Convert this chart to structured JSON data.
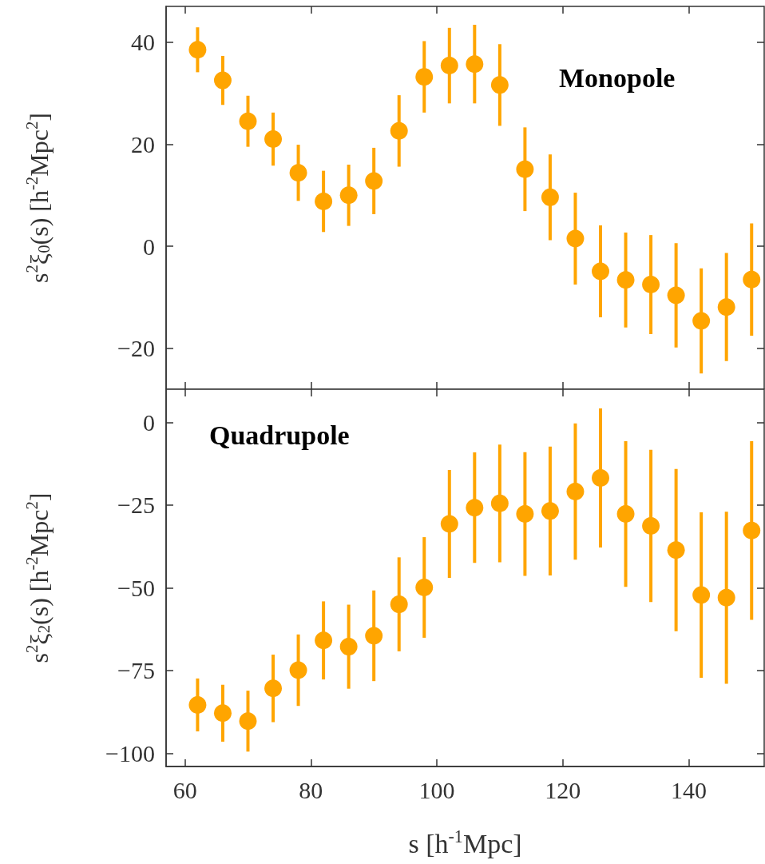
{
  "chart_data": [
    {
      "type": "scatter",
      "ylabel": "s$^{2}$ξ$_{0}$(s) [h$^{-2}$Mpc$^{2}$]",
      "annotations": [
        "Monopole"
      ],
      "x": [
        62,
        66,
        70,
        74,
        78,
        82,
        86,
        90,
        94,
        98,
        102,
        106,
        110,
        114,
        118,
        122,
        126,
        130,
        134,
        138,
        142,
        146,
        150
      ],
      "series": [
        {
          "color": "#ffa500",
          "values": [
            38.5,
            32.5,
            24.5,
            21,
            14.4,
            8.8,
            10,
            12.8,
            22.6,
            33.2,
            35.4,
            35.7,
            31.6,
            15.1,
            9.6,
            1.5,
            -4.9,
            -6.6,
            -7.5,
            -9.6,
            -14.6,
            -11.9,
            -6.5
          ],
          "errors": [
            4.4,
            4.8,
            5,
            5.2,
            5.5,
            6,
            6,
            6.5,
            7,
            7,
            7.4,
            7.7,
            8,
            8.2,
            8.4,
            9,
            9,
            9.3,
            9.7,
            10.2,
            10.3,
            10.6,
            11
          ]
        }
      ],
      "xlim": [
        57,
        152
      ],
      "xticks": [
        60,
        80,
        100,
        120,
        140
      ],
      "ylim": [
        -28,
        47
      ],
      "yticks": [
        -20,
        0,
        20,
        40
      ],
      "tick_labels": "y",
      "grid": false,
      "marker": "circle"
    },
    {
      "type": "scatter",
      "xlabel": "s [h$^{-1}$Mpc]",
      "ylabel": "s$^{2}$ξ$_{2}$(s) [h$^{-2}$Mpc$^{2}$]",
      "annotations": [
        "Quadrupole"
      ],
      "x": [
        62,
        66,
        70,
        74,
        78,
        82,
        86,
        90,
        94,
        98,
        102,
        106,
        110,
        114,
        118,
        122,
        126,
        130,
        134,
        138,
        142,
        146,
        150
      ],
      "series": [
        {
          "color": "#ffa500",
          "values": [
            -85.4,
            -87.9,
            -90.3,
            -80.4,
            -74.9,
            -65.9,
            -67.8,
            -64.5,
            -55,
            -49.9,
            -30.7,
            -25.8,
            -24.5,
            -27.7,
            -26.8,
            -20.9,
            -16.8,
            -27.7,
            -31.3,
            -38.6,
            -52.2,
            -53,
            -32.7
          ],
          "errors": [
            8,
            8.6,
            9.2,
            10.2,
            10.8,
            11.8,
            12.7,
            13.7,
            14.2,
            15.2,
            16.3,
            16.7,
            17.8,
            18.7,
            19.5,
            20.6,
            21,
            22,
            23,
            24.5,
            25,
            26,
            27
          ]
        }
      ],
      "xlim": [
        57,
        152
      ],
      "xticks": [
        60,
        80,
        100,
        120,
        140
      ],
      "ylim": [
        -104,
        10
      ],
      "yticks": [
        -100,
        -75,
        -50,
        -25,
        0
      ],
      "grid": false,
      "marker": "circle"
    }
  ]
}
